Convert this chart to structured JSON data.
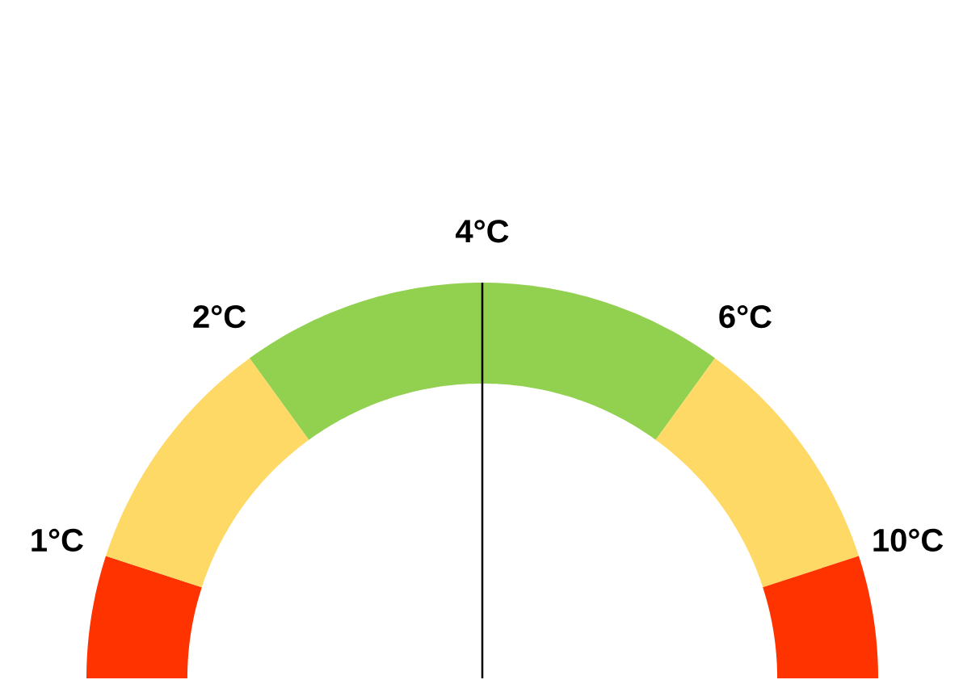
{
  "chart_data": {
    "type": "donut",
    "categories": [
      null,
      null,
      null,
      null,
      null,
      null
    ],
    "values": [
      10,
      20,
      20,
      20,
      20,
      10
    ],
    "colors": [
      "#ff3300",
      "#ffd966",
      "#92d050",
      "#92d050",
      "#ffd966",
      "#ff3300"
    ],
    "annotations": [
      "1°C",
      "2°C",
      "4°C",
      "6°C",
      "10°C"
    ]
  }
}
